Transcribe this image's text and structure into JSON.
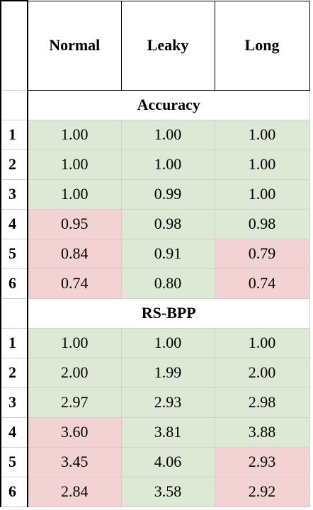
{
  "table": {
    "columns": [
      "Normal",
      "Leaky",
      "Long"
    ],
    "sections": [
      {
        "title": "Accuracy",
        "rows": [
          {
            "index": "1",
            "values": [
              "1.00",
              "1.00",
              "1.00"
            ],
            "status": [
              "good",
              "good",
              "good"
            ]
          },
          {
            "index": "2",
            "values": [
              "1.00",
              "1.00",
              "1.00"
            ],
            "status": [
              "good",
              "good",
              "good"
            ]
          },
          {
            "index": "3",
            "values": [
              "1.00",
              "0.99",
              "1.00"
            ],
            "status": [
              "good",
              "good",
              "good"
            ]
          },
          {
            "index": "4",
            "values": [
              "0.95",
              "0.98",
              "0.98"
            ],
            "status": [
              "bad",
              "good",
              "good"
            ]
          },
          {
            "index": "5",
            "values": [
              "0.84",
              "0.91",
              "0.79"
            ],
            "status": [
              "bad",
              "good",
              "bad"
            ]
          },
          {
            "index": "6",
            "values": [
              "0.74",
              "0.80",
              "0.74"
            ],
            "status": [
              "bad",
              "good",
              "bad"
            ]
          }
        ]
      },
      {
        "title": "RS-BPP",
        "rows": [
          {
            "index": "1",
            "values": [
              "1.00",
              "1.00",
              "1.00"
            ],
            "status": [
              "good",
              "good",
              "good"
            ]
          },
          {
            "index": "2",
            "values": [
              "2.00",
              "1.99",
              "2.00"
            ],
            "status": [
              "good",
              "good",
              "good"
            ]
          },
          {
            "index": "3",
            "values": [
              "2.97",
              "2.93",
              "2.98"
            ],
            "status": [
              "good",
              "good",
              "good"
            ]
          },
          {
            "index": "4",
            "values": [
              "3.60",
              "3.81",
              "3.88"
            ],
            "status": [
              "bad",
              "good",
              "good"
            ]
          },
          {
            "index": "5",
            "values": [
              "3.45",
              "4.06",
              "2.93"
            ],
            "status": [
              "bad",
              "good",
              "bad"
            ]
          },
          {
            "index": "6",
            "values": [
              "2.84",
              "3.58",
              "2.92"
            ],
            "status": [
              "bad",
              "good",
              "bad"
            ]
          }
        ]
      }
    ]
  },
  "colors": {
    "good": "#dde8d5",
    "bad": "#f2d2d2",
    "border": "#d0d0d0",
    "strong_border": "#000000"
  }
}
